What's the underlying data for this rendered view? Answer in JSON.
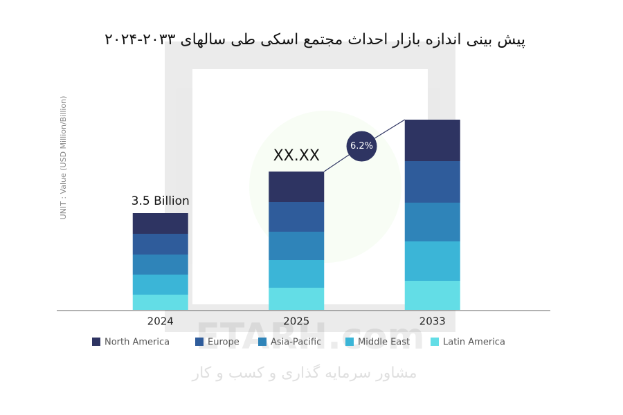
{
  "chart_data": {
    "type": "stacked_bar",
    "title": "پیش بینی اندازه بازار احداث مجتمع اسکی طی سالهای ۲۰۳۳-۲۰۲۴",
    "y_label": "UNIT : Value (USD Million/Billion)",
    "categories": [
      "2024",
      "2025",
      "2033"
    ],
    "series": [
      {
        "name": "Latin America",
        "color": "#63dde6",
        "values": [
          0.55,
          0.8,
          1.05
        ]
      },
      {
        "name": "Middle East",
        "color": "#3bb5d7",
        "values": [
          0.725,
          1.0,
          1.425
        ]
      },
      {
        "name": "Asia-Pacific",
        "color": "#2f84b9",
        "values": [
          0.725,
          1.025,
          1.4
        ]
      },
      {
        "name": "Europe",
        "color": "#2f5c9b",
        "values": [
          0.75,
          1.075,
          1.5
        ]
      },
      {
        "name": "North America",
        "color": "#2e3462",
        "values": [
          0.75,
          1.1,
          1.5
        ]
      }
    ],
    "legend_order": [
      4,
      3,
      2,
      1,
      0
    ],
    "ylim": [
      0,
      8.5
    ],
    "annotations": [
      "3.5 Billion",
      "XX.XX",
      "6.2%"
    ],
    "watermark": [
      "ETARH.com",
      "مشاور سرمایه گذاری و کسب و کار"
    ]
  }
}
